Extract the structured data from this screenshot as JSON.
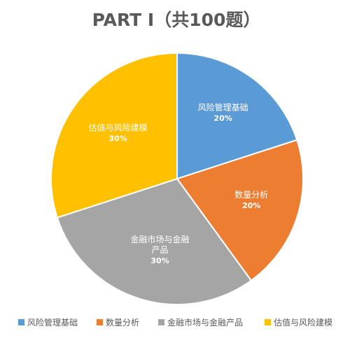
{
  "chart_data": {
    "type": "pie",
    "title": "PART I（共100题）",
    "categories": [
      "风险管理基础",
      "数量分析",
      "金融市场与金融产品",
      "估值与风险建模"
    ],
    "values": [
      20,
      20,
      30,
      30
    ],
    "value_labels": [
      "20%",
      "20%",
      "30%",
      "30%"
    ],
    "colors": [
      "#5B9BD5",
      "#ED7D31",
      "#A5A5A5",
      "#FFC000"
    ],
    "start_angle_deg": 90,
    "direction": "clockwise",
    "legend_position": "bottom",
    "data_labels": "inside"
  }
}
